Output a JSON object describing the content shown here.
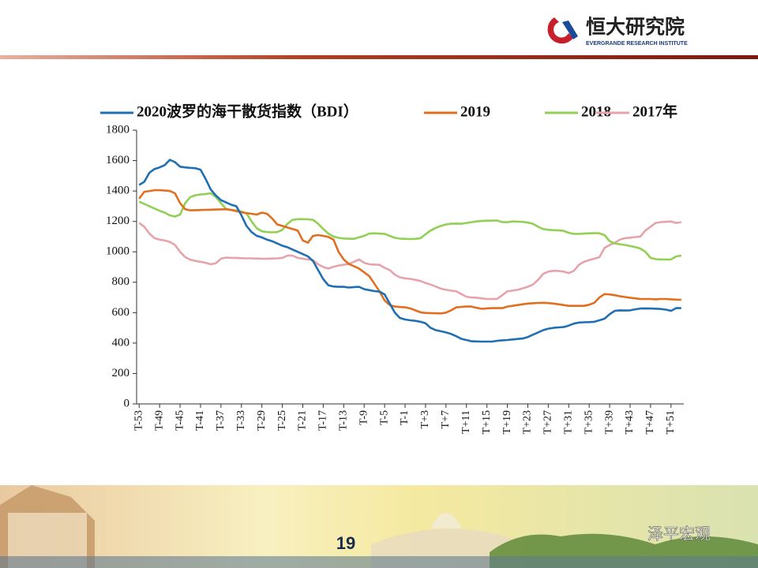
{
  "header": {
    "logo_text": "恒大研究院",
    "logo_subtext": "EVERGRANDE RESEARCH INSTITUTE"
  },
  "page_number": 19,
  "watermark": "泽平宏观",
  "chart_data": {
    "type": "line",
    "categories": [
      "T-53",
      null,
      null,
      null,
      "T-49",
      null,
      null,
      null,
      "T-45",
      null,
      null,
      null,
      "T-41",
      null,
      null,
      null,
      "T-37",
      null,
      null,
      null,
      "T-33",
      null,
      null,
      null,
      "T-29",
      null,
      null,
      null,
      "T-25",
      null,
      null,
      null,
      "T-21",
      null,
      null,
      null,
      "T-17",
      null,
      null,
      null,
      "T-13",
      null,
      null,
      null,
      "T-9",
      null,
      null,
      null,
      "T-5",
      null,
      null,
      null,
      "T-1",
      null,
      null,
      null,
      "T+3",
      null,
      null,
      null,
      "T+7",
      null,
      null,
      null,
      "T+11",
      null,
      null,
      null,
      "T+15",
      null,
      null,
      null,
      "T+19",
      null,
      null,
      null,
      "T+23",
      null,
      null,
      null,
      "T+27",
      null,
      null,
      null,
      "T+31",
      null,
      null,
      null,
      "T+35",
      null,
      null,
      null,
      "T+39",
      null,
      null,
      null,
      "T+43",
      null,
      null,
      null,
      "T+47",
      null,
      null,
      null,
      "T+51",
      null,
      null
    ],
    "series": [
      {
        "name": "2020波罗的海干散货指数（BDI）",
        "color": "#1f6fb2",
        "values": [
          1440,
          1460,
          1520,
          1545,
          1555,
          1570,
          1605,
          1590,
          1560,
          1555,
          1552,
          1550,
          1540,
          1480,
          1410,
          1370,
          1340,
          1325,
          1310,
          1300,
          1240,
          1170,
          1130,
          1105,
          1095,
          1080,
          1070,
          1055,
          1040,
          1030,
          1015,
          1000,
          985,
          970,
          940,
          880,
          820,
          780,
          772,
          770,
          770,
          765,
          768,
          770,
          755,
          748,
          742,
          738,
          720,
          660,
          600,
          565,
          555,
          550,
          546,
          540,
          530,
          500,
          485,
          478,
          470,
          460,
          445,
          428,
          420,
          412,
          411,
          410,
          410,
          410,
          415,
          418,
          420,
          424,
          427,
          430,
          440,
          455,
          470,
          485,
          495,
          500,
          503,
          505,
          515,
          528,
          535,
          537,
          538,
          540,
          550,
          560,
          590,
          612,
          615,
          614,
          615,
          622,
          627,
          628,
          627,
          626,
          624,
          620,
          612,
          630,
          630
        ]
      },
      {
        "name": "2019",
        "color": "#e26f1f",
        "values": [
          1350,
          1395,
          1400,
          1405,
          1405,
          1403,
          1400,
          1385,
          1320,
          1280,
          1273,
          1274,
          1275,
          1276,
          1277,
          1278,
          1279,
          1280,
          1275,
          1268,
          1260,
          1255,
          1250,
          1245,
          1258,
          1250,
          1220,
          1180,
          1170,
          1160,
          1150,
          1140,
          1075,
          1060,
          1105,
          1110,
          1105,
          1098,
          1080,
          1000,
          950,
          920,
          905,
          890,
          865,
          840,
          790,
          740,
          680,
          650,
          640,
          637,
          635,
          628,
          615,
          602,
          598,
          597,
          596,
          595,
          600,
          615,
          635,
          638,
          640,
          640,
          632,
          625,
          628,
          630,
          630,
          630,
          640,
          645,
          650,
          655,
          660,
          662,
          664,
          665,
          663,
          660,
          655,
          650,
          645,
          645,
          645,
          645,
          652,
          665,
          700,
          722,
          720,
          715,
          708,
          703,
          698,
          694,
          690,
          690,
          690,
          688,
          690,
          690,
          688,
          686,
          685
        ]
      },
      {
        "name": "2018",
        "color": "#92cf55",
        "values": [
          1330,
          1315,
          1300,
          1285,
          1270,
          1258,
          1240,
          1232,
          1245,
          1320,
          1360,
          1372,
          1377,
          1380,
          1385,
          1360,
          1320,
          1282,
          1276,
          1272,
          1265,
          1252,
          1200,
          1155,
          1135,
          1130,
          1128,
          1130,
          1145,
          1185,
          1210,
          1215,
          1215,
          1214,
          1210,
          1185,
          1150,
          1120,
          1100,
          1092,
          1088,
          1086,
          1085,
          1095,
          1105,
          1120,
          1122,
          1120,
          1118,
          1105,
          1092,
          1087,
          1085,
          1084,
          1085,
          1090,
          1115,
          1140,
          1158,
          1170,
          1180,
          1185,
          1186,
          1185,
          1190,
          1195,
          1200,
          1203,
          1205,
          1205,
          1206,
          1195,
          1195,
          1200,
          1199,
          1197,
          1192,
          1185,
          1165,
          1150,
          1145,
          1142,
          1141,
          1138,
          1125,
          1118,
          1118,
          1120,
          1122,
          1123,
          1122,
          1110,
          1070,
          1055,
          1050,
          1045,
          1038,
          1032,
          1022,
          1000,
          960,
          952,
          950,
          950,
          950,
          970,
          975
        ]
      },
      {
        "name": "2017年",
        "color": "#e6a3ab",
        "values": [
          1190,
          1165,
          1120,
          1090,
          1080,
          1075,
          1065,
          1045,
          1000,
          965,
          948,
          940,
          935,
          928,
          918,
          925,
          955,
          962,
          960,
          960,
          958,
          957,
          957,
          956,
          955,
          955,
          956,
          957,
          960,
          975,
          975,
          960,
          955,
          950,
          945,
          918,
          900,
          890,
          902,
          910,
          915,
          920,
          935,
          950,
          928,
          918,
          916,
          915,
          895,
          880,
          850,
          832,
          826,
          822,
          816,
          808,
          795,
          785,
          772,
          758,
          750,
          745,
          740,
          722,
          705,
          700,
          698,
          694,
          690,
          690,
          690,
          715,
          740,
          745,
          750,
          760,
          770,
          785,
          815,
          855,
          870,
          875,
          874,
          870,
          860,
          875,
          915,
          935,
          945,
          955,
          965,
          1025,
          1045,
          1060,
          1080,
          1090,
          1093,
          1097,
          1100,
          1140,
          1165,
          1190,
          1195,
          1198,
          1200,
          1190,
          1195
        ]
      }
    ],
    "ylim": [
      0,
      1800
    ],
    "yticks": [
      0,
      200,
      400,
      600,
      800,
      1000,
      1200,
      1400,
      1600,
      1800
    ],
    "legend": "top",
    "grid": false
  }
}
